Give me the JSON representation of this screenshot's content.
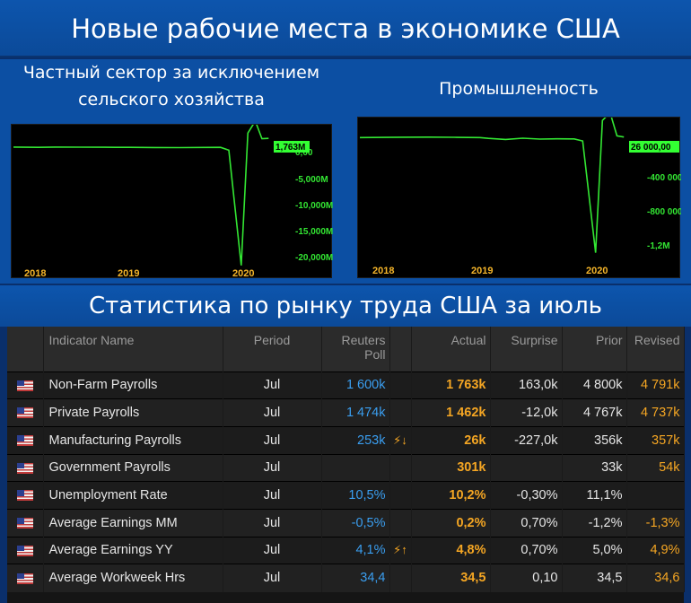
{
  "page": {
    "title": "Новые рабочие места в экономике США",
    "table_title": "Статистика по рынку труда США за июль"
  },
  "colors": {
    "banner": "#0d55ad",
    "line": "#33e633",
    "highlight": "#33ff33",
    "actual": "#f5a623",
    "poll": "#3a9ef0"
  },
  "chart_data": [
    {
      "type": "line",
      "title": "Частный сектор за исключением сельского хозяйства",
      "last_value_label": "1,763M",
      "x_ticks": [
        "2018",
        "2019",
        "2020"
      ],
      "y_ticks": [
        "0,00",
        "-5,000M",
        "-10,000M",
        "-15,000M",
        "-20,000M"
      ],
      "ylim": [
        -21000,
        2900
      ],
      "series": [
        {
          "x": [
            2017.5,
            2017.8,
            2018.0,
            2018.3,
            2018.6,
            2018.9,
            2019.2,
            2019.5,
            2019.8,
            2020.0,
            2020.1,
            2020.25,
            2020.33,
            2020.42,
            2020.5,
            2020.58
          ],
          "values": [
            250,
            200,
            240,
            230,
            210,
            200,
            170,
            150,
            180,
            200,
            -300,
            -20500,
            2700,
            4800,
            1700,
            1763
          ]
        }
      ]
    },
    {
      "type": "line",
      "title": "Промышленность",
      "last_value_label": "26 000,00",
      "x_ticks": [
        "2018",
        "2019",
        "2020"
      ],
      "y_ticks": [
        "-400 000",
        "-800 000",
        "-1,2M"
      ],
      "ylim": [
        -1450000,
        170000
      ],
      "series": [
        {
          "x": [
            2017.5,
            2017.8,
            2018.0,
            2018.3,
            2018.6,
            2018.9,
            2019.0,
            2019.2,
            2019.4,
            2019.6,
            2019.8,
            2020.0,
            2020.1,
            2020.25,
            2020.33,
            2020.42,
            2020.5,
            2020.58
          ],
          "values": [
            20000,
            22000,
            24000,
            25000,
            23000,
            20000,
            10000,
            -3000,
            12000,
            2000,
            5000,
            4000,
            -20000,
            -1330000,
            220000,
            310000,
            40000,
            26000
          ]
        }
      ]
    },
    {
      "type": "table",
      "headers": {
        "indicator": "Indicator Name",
        "period": "Period",
        "poll": "Reuters\nPoll",
        "actual": "Actual",
        "surprise": "Surprise",
        "prior": "Prior",
        "revised": "Revised"
      },
      "rows": [
        {
          "name": "Non-Farm Payrolls",
          "period": "Jul",
          "poll": "1 600k",
          "arrow": "",
          "actual": "1 763k",
          "surprise": "163,0k",
          "prior": "4 800k",
          "revised": "4 791k"
        },
        {
          "name": "Private Payrolls",
          "period": "Jul",
          "poll": "1 474k",
          "arrow": "",
          "actual": "1 462k",
          "surprise": "-12,0k",
          "prior": "4 767k",
          "revised": "4 737k"
        },
        {
          "name": "Manufacturing Payrolls",
          "period": "Jul",
          "poll": "253k",
          "arrow": "⚡↓",
          "actual": "26k",
          "surprise": "-227,0k",
          "prior": "356k",
          "revised": "357k"
        },
        {
          "name": "Government Payrolls",
          "period": "Jul",
          "poll": "",
          "arrow": "",
          "actual": "301k",
          "surprise": "",
          "prior": "33k",
          "revised": "54k"
        },
        {
          "name": "Unemployment Rate",
          "period": "Jul",
          "poll": "10,5%",
          "arrow": "",
          "actual": "10,2%",
          "surprise": "-0,30%",
          "prior": "11,1%",
          "revised": ""
        },
        {
          "name": "Average Earnings MM",
          "period": "Jul",
          "poll": "-0,5%",
          "arrow": "",
          "actual": "0,2%",
          "surprise": "0,70%",
          "prior": "-1,2%",
          "revised": "-1,3%"
        },
        {
          "name": "Average Earnings YY",
          "period": "Jul",
          "poll": "4,1%",
          "arrow": "⚡↑",
          "actual": "4,8%",
          "surprise": "0,70%",
          "prior": "5,0%",
          "revised": "4,9%"
        },
        {
          "name": "Average Workweek Hrs",
          "period": "Jul",
          "poll": "34,4",
          "arrow": "",
          "actual": "34,5",
          "surprise": "0,10",
          "prior": "34,5",
          "revised": "34,6"
        }
      ]
    }
  ]
}
